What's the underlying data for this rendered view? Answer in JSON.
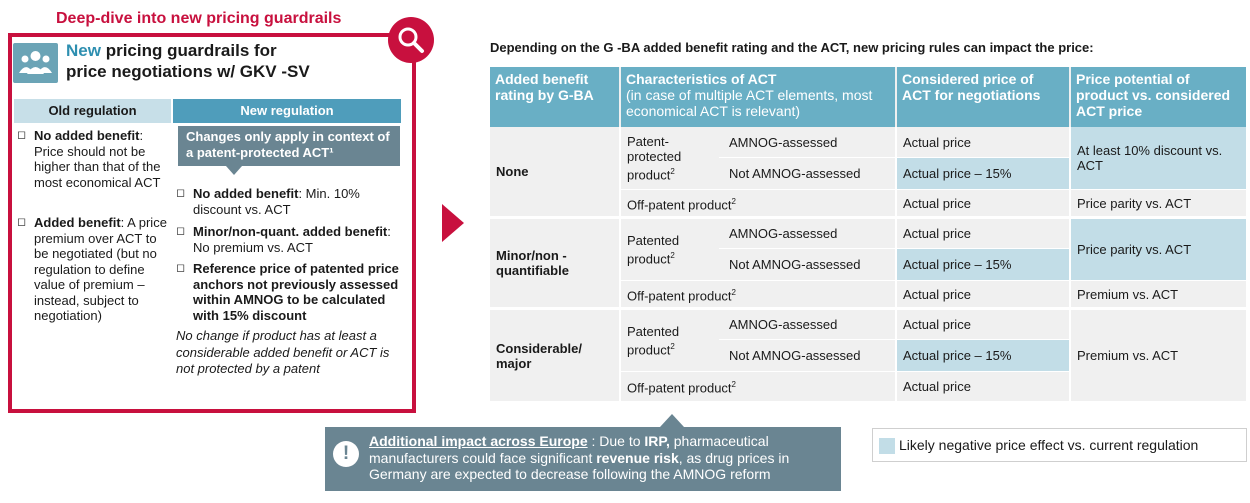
{
  "deep_dive_title": "Deep-dive into new pricing guardrails",
  "icons": {
    "magnifier": "magnifier-icon",
    "people": "people-icon",
    "exclamation": "exclamation-icon",
    "bullet": "bullet-icon"
  },
  "colors": {
    "brand": "#c8103e",
    "header_blue": "#69afc5",
    "callout_gray": "#6a8592",
    "highlight": "#c2dde7"
  },
  "left": {
    "title_new": "New",
    "title_rest_1": " pricing guardrails for",
    "title_line_2": "price negotiations w/ GKV -SV",
    "old_header": "Old regulation",
    "new_header": "New regulation",
    "old_items": [
      {
        "bold": "No added benefit",
        "rest": ": Price should not be higher than that of the most economical ACT"
      },
      {
        "bold": "Added benefit",
        "rest": ": A price premium over ACT to be negotiated (but no regulation to define value of premium – instead, subject to negotiation)"
      }
    ],
    "callout": "Changes only apply in context of a patent-protected ACT¹",
    "new_items": [
      {
        "bold": "No added benefit",
        "rest": ": Min. 10% discount vs. ACT"
      },
      {
        "bold": "Minor/non-quant. added benefit",
        "rest": ": No premium vs. ACT"
      },
      {
        "bold": "Reference price of patented price anchors not previously assessed within AMNOG to be calculated with 15% discount",
        "rest": ""
      }
    ],
    "note": "No change if product has at least a considerable added benefit or ACT is not protected by a patent"
  },
  "intro": "Depending on the G -BA added benefit rating and the ACT, new pricing rules can impact the price:",
  "table": {
    "headers": {
      "rating": "Added benefit rating by G-BA",
      "act_main": "Characteristics of ACT",
      "act_sub": "(in case of multiple ACT elements, most economical ACT is relevant)",
      "considered": "Considered price of ACT for negotiations",
      "potential": "Price potential of product vs. considered ACT price"
    },
    "groups": {
      "none": {
        "rating": "None",
        "sub": "Patent-protected product",
        "sup": "2",
        "amnog": "AMNOG-assessed",
        "amnog_price": "Actual price",
        "not_amnog": "Not AMNOG-assessed",
        "not_amnog_price": "Actual price – 15%",
        "potential": "At least 10% discount vs. ACT",
        "offpatent": "Off-patent product",
        "offpatent_sup": "2",
        "offpatent_price": "Actual price",
        "offpatent_potential": "Price parity vs. ACT"
      },
      "minor": {
        "rating": "Minor/non - quantifiable",
        "sub": "Patented product",
        "sup": "2",
        "amnog": "AMNOG-assessed",
        "amnog_price": "Actual price",
        "not_amnog": "Not AMNOG-assessed",
        "not_amnog_price": "Actual price – 15%",
        "potential": "Price parity vs. ACT",
        "offpatent": "Off-patent product",
        "offpatent_sup": "2",
        "offpatent_price": "Actual price",
        "offpatent_potential": "Premium vs. ACT"
      },
      "considerable": {
        "rating": "Considerable/ major",
        "sub": "Patented product",
        "sup": "2",
        "amnog": "AMNOG-assessed",
        "amnog_price": "Actual price",
        "not_amnog": "Not AMNOG-assessed",
        "not_amnog_price": "Actual price – 15%",
        "potential": "Premium vs. ACT",
        "offpatent": "Off-patent product",
        "offpatent_sup": "2",
        "offpatent_price": "Actual price"
      }
    }
  },
  "impact": {
    "label": "Additional impact across Europe",
    "sep": " : Due to ",
    "irp": "IRP,",
    "mid": " pharmaceutical manufacturers could face significant ",
    "risk": "revenue risk",
    "end": ", as drug prices in Germany are expected to decrease following the AMNOG reform"
  },
  "legend": "Likely negative price effect vs. current regulation"
}
